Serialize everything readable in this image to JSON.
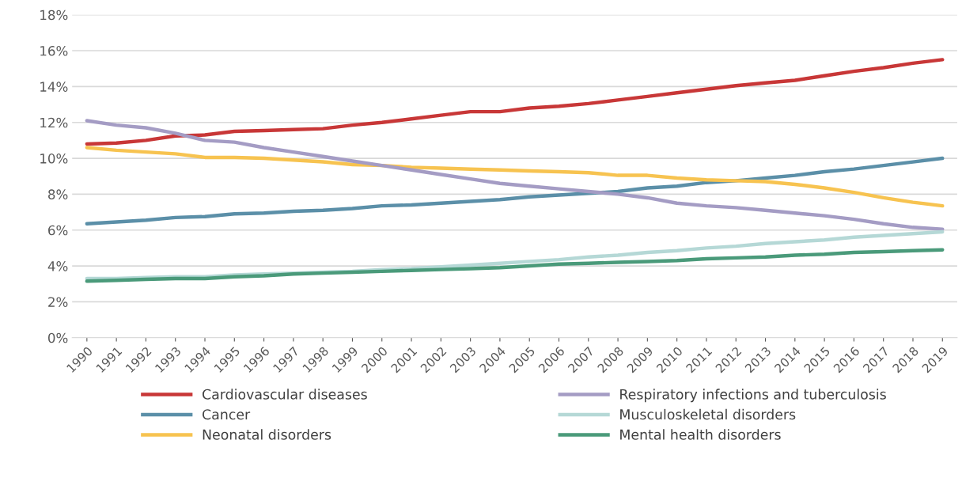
{
  "chart_data": {
    "type": "line",
    "categories": [
      "1990",
      "1991",
      "1992",
      "1993",
      "1994",
      "1995",
      "1996",
      "1997",
      "1998",
      "1999",
      "2000",
      "2001",
      "2002",
      "2003",
      "2004",
      "2005",
      "2006",
      "2007",
      "2008",
      "2009",
      "2010",
      "2011",
      "2012",
      "2013",
      "2014",
      "2015",
      "2016",
      "2017",
      "2018",
      "2019"
    ],
    "series": [
      {
        "name": "Cardiovascular diseases",
        "color": "#c83737",
        "values": [
          10.8,
          10.85,
          11.0,
          11.25,
          11.3,
          11.5,
          11.55,
          11.6,
          11.65,
          11.85,
          12.0,
          12.2,
          12.4,
          12.6,
          12.6,
          12.8,
          12.9,
          13.05,
          13.25,
          13.45,
          13.65,
          13.85,
          14.05,
          14.2,
          14.35,
          14.6,
          14.85,
          15.05,
          15.3,
          15.5
        ]
      },
      {
        "name": "Cancer",
        "color": "#5b8fa8",
        "values": [
          6.35,
          6.45,
          6.55,
          6.7,
          6.75,
          6.9,
          6.95,
          7.05,
          7.1,
          7.2,
          7.35,
          7.4,
          7.5,
          7.6,
          7.7,
          7.85,
          7.95,
          8.05,
          8.15,
          8.35,
          8.45,
          8.65,
          8.75,
          8.9,
          9.05,
          9.25,
          9.4,
          9.6,
          9.8,
          10.0
        ]
      },
      {
        "name": "Neonatal disorders",
        "color": "#f7c350",
        "values": [
          10.6,
          10.45,
          10.35,
          10.25,
          10.05,
          10.05,
          10.0,
          9.9,
          9.8,
          9.65,
          9.6,
          9.5,
          9.45,
          9.4,
          9.35,
          9.3,
          9.25,
          9.2,
          9.05,
          9.05,
          8.9,
          8.8,
          8.75,
          8.7,
          8.55,
          8.35,
          8.1,
          7.8,
          7.55,
          7.35
        ]
      },
      {
        "name": "Respiratory infections and tuberculosis",
        "color": "#a49cc4",
        "values": [
          12.1,
          11.85,
          11.7,
          11.4,
          11.0,
          10.9,
          10.6,
          10.35,
          10.1,
          9.85,
          9.6,
          9.35,
          9.1,
          8.85,
          8.6,
          8.45,
          8.3,
          8.15,
          8.0,
          7.8,
          7.5,
          7.35,
          7.25,
          7.1,
          6.95,
          6.8,
          6.6,
          6.35,
          6.15,
          6.05
        ]
      },
      {
        "name": "Musculoskeletal disorders",
        "color": "#b5d8d6",
        "values": [
          3.3,
          3.3,
          3.35,
          3.4,
          3.4,
          3.5,
          3.55,
          3.6,
          3.65,
          3.7,
          3.8,
          3.85,
          3.95,
          4.05,
          4.15,
          4.25,
          4.35,
          4.5,
          4.6,
          4.75,
          4.85,
          5.0,
          5.1,
          5.25,
          5.35,
          5.45,
          5.6,
          5.7,
          5.8,
          5.9
        ]
      },
      {
        "name": "Mental health disorders",
        "color": "#4a9a7a",
        "values": [
          3.15,
          3.2,
          3.25,
          3.3,
          3.3,
          3.4,
          3.45,
          3.55,
          3.6,
          3.65,
          3.7,
          3.75,
          3.8,
          3.85,
          3.9,
          4.0,
          4.1,
          4.15,
          4.2,
          4.25,
          4.3,
          4.4,
          4.45,
          4.5,
          4.6,
          4.65,
          4.75,
          4.8,
          4.85,
          4.9
        ]
      }
    ],
    "ylim": [
      0,
      18
    ],
    "yticks": [
      {
        "value": 0,
        "label": "0%"
      },
      {
        "value": 2,
        "label": "2%"
      },
      {
        "value": 4,
        "label": "4%"
      },
      {
        "value": 6,
        "label": "6%"
      },
      {
        "value": 8,
        "label": "8%"
      },
      {
        "value": 10,
        "label": "10%"
      },
      {
        "value": 12,
        "label": "12%"
      },
      {
        "value": 14,
        "label": "14%"
      },
      {
        "value": 16,
        "label": "16%"
      },
      {
        "value": 18,
        "label": "18%"
      }
    ],
    "grid": "y",
    "legend": "bottom",
    "marker": "none",
    "line_style": "solid"
  }
}
